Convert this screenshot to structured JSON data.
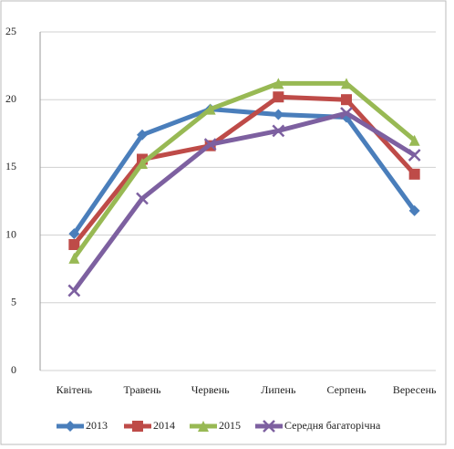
{
  "chart_data": {
    "type": "line",
    "categories": [
      "Квітень",
      "Травень",
      "Червень",
      "Липень",
      "Серпень",
      "Вересень"
    ],
    "series": [
      {
        "name": "2013",
        "color": "#4a7ebb",
        "marker": "diamond",
        "values": [
          10.1,
          17.4,
          19.3,
          18.9,
          18.7,
          11.8
        ]
      },
      {
        "name": "2014",
        "color": "#be4b48",
        "marker": "square",
        "values": [
          9.3,
          15.6,
          16.6,
          20.2,
          20.0,
          14.5
        ]
      },
      {
        "name": "2015",
        "color": "#98b954",
        "marker": "triangle",
        "values": [
          8.3,
          15.3,
          19.3,
          21.2,
          21.2,
          17.0
        ]
      },
      {
        "name": "Середня багаторічна",
        "color": "#7d60a0",
        "marker": "x",
        "values": [
          5.9,
          12.7,
          16.7,
          17.7,
          19.0,
          15.9
        ]
      }
    ],
    "ylim": [
      0,
      25
    ],
    "yticks": [
      0,
      5,
      10,
      15,
      20,
      25
    ],
    "grid": true,
    "legend": "bottom"
  }
}
